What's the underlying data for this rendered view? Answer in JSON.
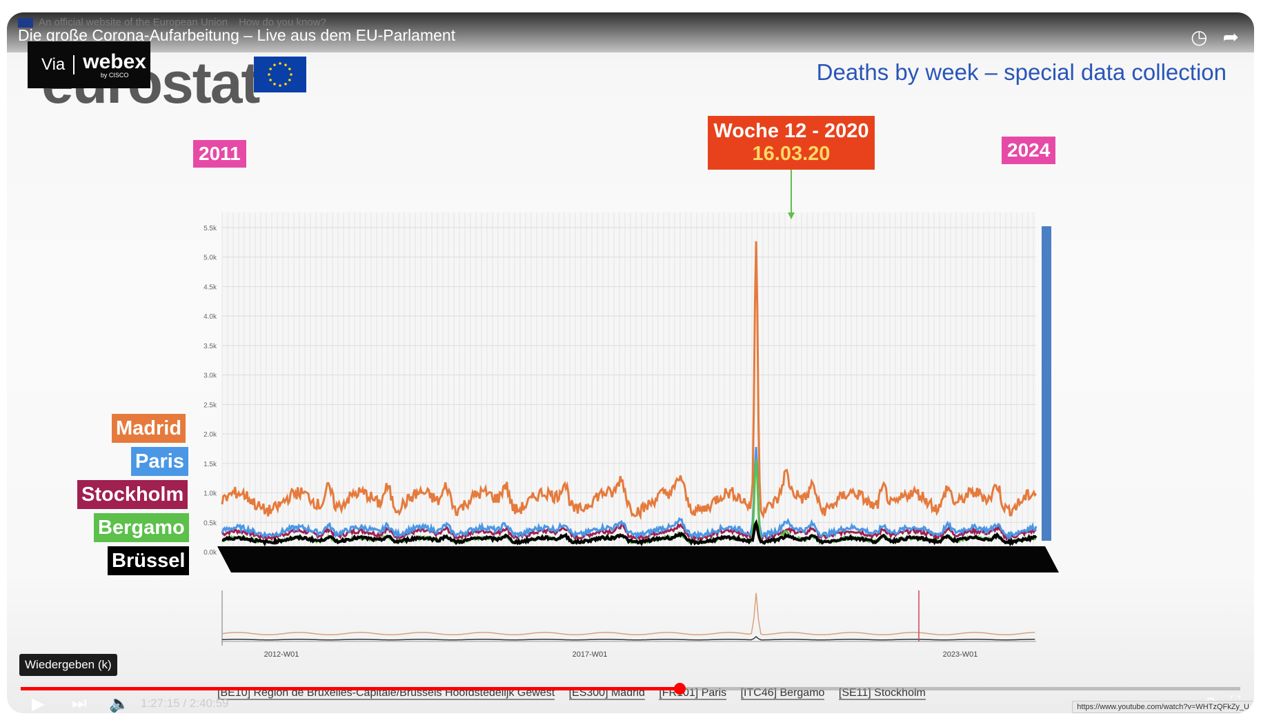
{
  "browser": {
    "eu_banner": "An official website of the European Union",
    "eu_banner_link": "How do you know?",
    "url_status": "https://www.youtube.com/watch?v=WHTzQFkZy_U"
  },
  "player": {
    "title": "Die große Corona-Aufarbeitung – Live aus dem EU-Parlament",
    "tooltip": "Wiedergeben (k)",
    "time": "1:27:15 / 2:40:59",
    "progress_fraction": 0.54,
    "icons": [
      "clock-icon",
      "share-icon",
      "play-icon",
      "next-icon",
      "volume-icon"
    ]
  },
  "slide": {
    "via_label": "Via",
    "webex_label": "webex",
    "webex_sub": "by CISCO",
    "logo_text": "eurostat",
    "title": "Deaths by week – special data collection",
    "year_start": "2011",
    "year_end": "2024",
    "callout_line1": "Woche 12 - 2020",
    "callout_line2": "16.03.20",
    "legend": [
      {
        "name": "Madrid",
        "color": "#e57a3c"
      },
      {
        "name": "Paris",
        "color": "#4a97e6"
      },
      {
        "name": "Stockholm",
        "color": "#a02050"
      },
      {
        "name": "Bergamo",
        "color": "#5cc04a"
      },
      {
        "name": "Brüssel",
        "color": "#000000"
      }
    ],
    "bottom_legend": [
      "[BE10] Région de Bruxelles-Capitale/Brussels Hoofdstedelijk Gewest",
      "[ES300] Madrid",
      "[FR101] Paris",
      "[ITC46] Bergamo",
      "[SE11] Stockholm"
    ]
  },
  "chart_data": {
    "type": "line",
    "ylabel": "",
    "xlabel": "",
    "ylim": [
      0,
      5500
    ],
    "y_ticks": [
      "0.0k",
      "0.5k",
      "1.0k",
      "1.5k",
      "2.0k",
      "2.5k",
      "3.0k",
      "3.5k",
      "4.0k",
      "4.5k",
      "5.0k",
      "5.5k"
    ],
    "x_ticks": [
      "2012-W01",
      "2017-W01",
      "2023-W01"
    ],
    "grid": true,
    "legend_placement": "left",
    "series": [
      {
        "name": "Madrid",
        "color": "#e57a3c",
        "baseline": 850,
        "peak": 5350
      },
      {
        "name": "Paris",
        "color": "#4a97e6",
        "baseline": 350,
        "peak": 1800
      },
      {
        "name": "Stockholm",
        "color": "#a02050",
        "baseline": 300,
        "peak": 450
      },
      {
        "name": "Bergamo",
        "color": "#5cc04a",
        "baseline": 200,
        "peak": 1600
      },
      {
        "name": "Brüssel",
        "color": "#000000",
        "baseline": 200,
        "peak": 550
      }
    ]
  }
}
